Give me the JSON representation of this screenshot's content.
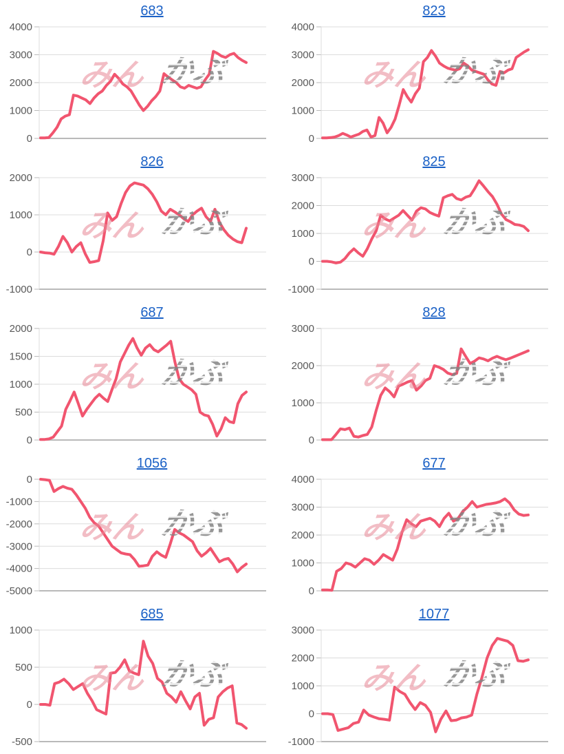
{
  "watermark": {
    "pink_text": "みん",
    "gray_text": "かぶ"
  },
  "colors": {
    "line": "#f1556f",
    "title_link": "#1b61c6",
    "tick_label": "#595959",
    "gridline": "#dcdcdc",
    "axis_line": "#b9b9b9",
    "watermark_pink": "#e786a9",
    "watermark_gray": "#848484"
  },
  "chart_data": [
    {
      "type": "line",
      "title": "683",
      "ylim": [
        0,
        4000
      ],
      "yticks": [
        4000,
        3000,
        2000,
        1000,
        0
      ],
      "legend": "none",
      "grid": "horizontal",
      "values": [
        20,
        20,
        30,
        200,
        400,
        700,
        800,
        850,
        1550,
        1520,
        1450,
        1380,
        1250,
        1450,
        1600,
        1700,
        1900,
        2050,
        2300,
        2150,
        1950,
        1850,
        1700,
        1450,
        1200,
        1000,
        1150,
        1350,
        1500,
        1700,
        2320,
        2200,
        2100,
        2000,
        1850,
        1800,
        1900,
        1850,
        1800,
        1850,
        2100,
        2300,
        3120,
        3050,
        2950,
        2900,
        3000,
        3050,
        2900,
        2800,
        2720
      ]
    },
    {
      "type": "line",
      "title": "823",
      "ylim": [
        0,
        4000
      ],
      "yticks": [
        4000,
        3000,
        2000,
        1000,
        0
      ],
      "legend": "none",
      "grid": "horizontal",
      "values": [
        20,
        20,
        30,
        50,
        100,
        180,
        120,
        50,
        100,
        150,
        250,
        300,
        50,
        100,
        750,
        550,
        200,
        400,
        700,
        1200,
        1750,
        1500,
        1300,
        1600,
        1800,
        2750,
        2900,
        3150,
        2950,
        2700,
        2600,
        2520,
        2480,
        2450,
        2500,
        2700,
        2600,
        2450,
        2400,
        2350,
        2300,
        2100,
        1950,
        1900,
        2400,
        2350,
        2450,
        2500,
        2900,
        3000,
        3100,
        3180
      ]
    },
    {
      "type": "line",
      "title": "826",
      "ylim": [
        -1000,
        2000
      ],
      "yticks": [
        2000,
        1000,
        0,
        -1000
      ],
      "legend": "none",
      "grid": "horizontal",
      "values": [
        0,
        -20,
        -30,
        -60,
        150,
        420,
        250,
        0,
        150,
        250,
        -50,
        -280,
        -260,
        -230,
        300,
        1050,
        850,
        950,
        1300,
        1600,
        1780,
        1860,
        1830,
        1800,
        1700,
        1550,
        1350,
        1100,
        1000,
        1150,
        1080,
        1000,
        900,
        820,
        1000,
        1100,
        1180,
        950,
        820,
        1150,
        800,
        600,
        450,
        350,
        280,
        250,
        640
      ]
    },
    {
      "type": "line",
      "title": "825",
      "ylim": [
        -1000,
        3000
      ],
      "yticks": [
        3000,
        2000,
        1000,
        0,
        -1000
      ],
      "legend": "none",
      "grid": "horizontal",
      "values": [
        0,
        0,
        -20,
        -60,
        -30,
        100,
        300,
        450,
        300,
        180,
        450,
        800,
        1100,
        1650,
        1520,
        1450,
        1550,
        1650,
        1820,
        1650,
        1480,
        1800,
        1920,
        1880,
        1750,
        1680,
        1620,
        2280,
        2350,
        2400,
        2250,
        2200,
        2300,
        2350,
        2600,
        2890,
        2700,
        2500,
        2320,
        2050,
        1700,
        1500,
        1420,
        1320,
        1300,
        1250,
        1100
      ]
    },
    {
      "type": "line",
      "title": "687",
      "ylim": [
        0,
        2000
      ],
      "yticks": [
        2000,
        1500,
        1000,
        500,
        0
      ],
      "legend": "none",
      "grid": "horizontal",
      "values": [
        10,
        10,
        20,
        50,
        150,
        250,
        550,
        700,
        860,
        650,
        430,
        550,
        650,
        750,
        820,
        750,
        690,
        900,
        1100,
        1400,
        1550,
        1700,
        1820,
        1650,
        1520,
        1650,
        1710,
        1620,
        1580,
        1640,
        1700,
        1770,
        1400,
        1100,
        1000,
        950,
        900,
        820,
        500,
        450,
        430,
        280,
        70,
        200,
        400,
        330,
        310,
        650,
        800,
        860
      ]
    },
    {
      "type": "line",
      "title": "828",
      "ylim": [
        0,
        3000
      ],
      "yticks": [
        3000,
        2000,
        1000,
        0
      ],
      "legend": "none",
      "grid": "horizontal",
      "values": [
        10,
        10,
        10,
        150,
        300,
        280,
        320,
        100,
        80,
        120,
        150,
        350,
        800,
        1200,
        1400,
        1300,
        1160,
        1450,
        1500,
        1560,
        1600,
        1340,
        1450,
        1600,
        1660,
        2000,
        1960,
        1900,
        1800,
        1760,
        1790,
        2450,
        2250,
        2060,
        2120,
        2210,
        2180,
        2130,
        2200,
        2250,
        2200,
        2160,
        2200,
        2250,
        2300,
        2350,
        2400
      ]
    },
    {
      "type": "line",
      "title": "1056",
      "ylim": [
        -5000,
        0
      ],
      "yticks": [
        0,
        -1000,
        -2000,
        -3000,
        -4000,
        -5000
      ],
      "legend": "none",
      "grid": "horizontal",
      "values": [
        0,
        -20,
        -50,
        -550,
        -420,
        -320,
        -400,
        -450,
        -700,
        -1000,
        -1300,
        -1700,
        -1950,
        -2100,
        -2400,
        -2700,
        -3000,
        -3150,
        -3300,
        -3350,
        -3380,
        -3600,
        -3900,
        -3880,
        -3850,
        -3450,
        -3250,
        -3400,
        -3500,
        -2900,
        -2250,
        -2400,
        -2500,
        -2650,
        -2800,
        -3200,
        -3450,
        -3300,
        -3100,
        -3400,
        -3700,
        -3600,
        -3550,
        -3800,
        -4150,
        -3950,
        -3800
      ]
    },
    {
      "type": "line",
      "title": "677",
      "ylim": [
        0,
        4000
      ],
      "yticks": [
        4000,
        3000,
        2000,
        1000,
        0
      ],
      "legend": "none",
      "grid": "horizontal",
      "values": [
        30,
        30,
        20,
        700,
        800,
        1000,
        950,
        850,
        1000,
        1150,
        1100,
        950,
        1100,
        1300,
        1200,
        1100,
        1500,
        2100,
        2550,
        2400,
        2300,
        2500,
        2550,
        2600,
        2500,
        2300,
        2600,
        2780,
        2500,
        2600,
        2850,
        3000,
        3200,
        3000,
        3050,
        3100,
        3120,
        3150,
        3200,
        3300,
        3150,
        2900,
        2750,
        2700,
        2720
      ]
    },
    {
      "type": "line",
      "title": "685",
      "ylim": [
        -500,
        1000
      ],
      "yticks": [
        1000,
        500,
        0,
        -500
      ],
      "legend": "none",
      "grid": "horizontal",
      "values": [
        0,
        0,
        -10,
        280,
        300,
        340,
        280,
        200,
        240,
        280,
        150,
        50,
        -70,
        -100,
        -130,
        420,
        430,
        500,
        600,
        450,
        420,
        400,
        850,
        650,
        550,
        350,
        300,
        150,
        100,
        30,
        170,
        50,
        -60,
        100,
        150,
        -280,
        -200,
        -180,
        100,
        170,
        220,
        250,
        -250,
        -270,
        -320
      ]
    },
    {
      "type": "line",
      "title": "1077",
      "ylim": [
        -1000,
        3000
      ],
      "yticks": [
        3000,
        2000,
        1000,
        0,
        -1000
      ],
      "legend": "none",
      "grid": "horizontal",
      "values": [
        0,
        0,
        -30,
        -600,
        -550,
        -500,
        -350,
        -300,
        130,
        -50,
        -120,
        -180,
        -200,
        -230,
        950,
        800,
        700,
        400,
        150,
        400,
        300,
        50,
        -650,
        -200,
        100,
        -250,
        -230,
        -150,
        -120,
        -50,
        700,
        1300,
        2000,
        2450,
        2700,
        2650,
        2600,
        2450,
        1900,
        1880,
        1930
      ]
    }
  ]
}
